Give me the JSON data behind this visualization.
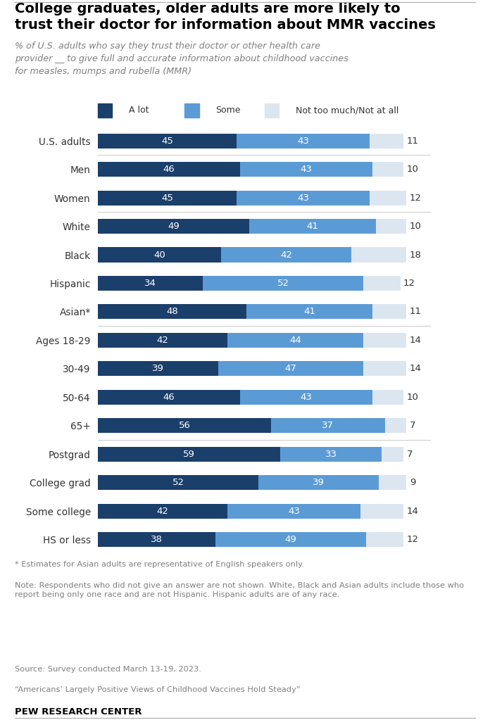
{
  "title": "College graduates, older adults are more likely to\ntrust their doctor for information about MMR vaccines",
  "subtitle": "% of U.S. adults who say they trust their doctor or other health care\nprovider __ to give full and accurate information about childhood vaccines\nfor measles, mumps and rubella (MMR)",
  "categories": [
    "U.S. adults",
    "Men",
    "Women",
    "White",
    "Black",
    "Hispanic",
    "Asian*",
    "Ages 18-29",
    "30-49",
    "50-64",
    "65+",
    "Postgrad",
    "College grad",
    "Some college",
    "HS or less"
  ],
  "a_lot": [
    45,
    46,
    45,
    49,
    40,
    34,
    48,
    42,
    39,
    46,
    56,
    59,
    52,
    42,
    38
  ],
  "some": [
    43,
    43,
    43,
    41,
    42,
    52,
    41,
    44,
    47,
    43,
    37,
    33,
    39,
    43,
    49
  ],
  "not_much": [
    11,
    10,
    12,
    10,
    18,
    12,
    11,
    14,
    14,
    10,
    7,
    7,
    9,
    14,
    12
  ],
  "color_alot": "#1b3f6b",
  "color_some": "#5b9bd5",
  "color_notmuch": "#dce6f1",
  "legend_labels": [
    "A lot",
    "Some",
    "Not too much/Not at all"
  ],
  "footnote1": "* Estimates for Asian adults are representative of English speakers only.",
  "footnote2": "Note: Respondents who did not give an answer are not shown. White, Black and Asian adults include those who report being only one race and are not Hispanic. Hispanic adults are of any race.",
  "footnote3": "Source: Survey conducted March 13-19, 2023.",
  "footnote4": "“Americans’ Largely Positive Views of Childhood Vaccines Hold Steady”",
  "footnote5": "PEW RESEARCH CENTER",
  "background_color": "#ffffff"
}
